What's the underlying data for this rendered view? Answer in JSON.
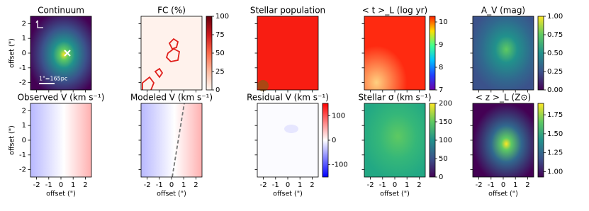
{
  "chart_data": [
    {
      "type": "image",
      "title": "Continuum",
      "ylabel": "offset (\")",
      "annotation": "1\"=165pc",
      "xlim": [
        -2.5,
        2.5
      ],
      "ylim": [
        -2.5,
        2.5
      ],
      "xticks": [
        -2,
        -1,
        0,
        1,
        2
      ],
      "yticks": [
        -2,
        -1,
        0,
        1,
        2
      ],
      "xticklabels": false,
      "yticklabels": true
    },
    {
      "type": "image",
      "title": "FC (%)",
      "xlim": [
        -2.5,
        2.5
      ],
      "ylim": [
        -2.5,
        2.5
      ],
      "xticks": [
        -2,
        -1,
        0,
        1,
        2
      ],
      "yticks": [
        -2,
        -1,
        0,
        1,
        2
      ],
      "xticklabels": false,
      "yticklabels": false,
      "clim": [
        0,
        100
      ],
      "cticks": [
        0,
        25,
        50,
        75,
        100
      ],
      "cmap": "Reds"
    },
    {
      "type": "image",
      "title": "Stellar population",
      "xlim": [
        -2.5,
        2.5
      ],
      "ylim": [
        -2.5,
        2.5
      ],
      "xticks": [
        -2,
        -1,
        0,
        1,
        2
      ],
      "yticks": [
        -2,
        -1,
        0,
        1,
        2
      ],
      "xticklabels": false,
      "yticklabels": false
    },
    {
      "type": "image",
      "title": "< t >_L (log yr)",
      "xlim": [
        -2.5,
        2.5
      ],
      "ylim": [
        -2.5,
        2.5
      ],
      "xticks": [
        -2,
        -1,
        0,
        1,
        2
      ],
      "yticks": [
        -2,
        -1,
        0,
        1,
        2
      ],
      "xticklabels": false,
      "yticklabels": false,
      "clim": [
        7,
        10.25
      ],
      "cticks": [
        7,
        8,
        9,
        10
      ],
      "cmap": "rainbow"
    },
    {
      "type": "image",
      "title": "A_V (mag)",
      "xlim": [
        -2.5,
        2.5
      ],
      "ylim": [
        -2.5,
        2.5
      ],
      "xticks": [
        -2,
        -1,
        0,
        1,
        2
      ],
      "yticks": [
        -2,
        -1,
        0,
        1,
        2
      ],
      "xticklabels": false,
      "yticklabels": false,
      "clim": [
        0,
        1
      ],
      "cticks": [
        {
          "value": 0,
          "label": "0.00"
        },
        {
          "value": 0.25,
          "label": "0.25"
        },
        {
          "value": 0.5,
          "label": "0.50"
        },
        {
          "value": 0.75,
          "label": "0.75"
        },
        {
          "value": 1,
          "label": "1.00"
        }
      ],
      "cmap": "viridis"
    },
    {
      "type": "image",
      "title": "Observed V (km s⁻¹)",
      "xlabel": "offset (\")",
      "ylabel": "offset (\")",
      "xlim": [
        -2.5,
        2.5
      ],
      "ylim": [
        -2.5,
        2.5
      ],
      "xticks": [
        -2,
        -1,
        0,
        1,
        2
      ],
      "yticks": [
        -2,
        -1,
        0,
        1,
        2
      ],
      "xticklabels": true,
      "yticklabels": true
    },
    {
      "type": "image",
      "title": "Modeled V (km s⁻¹)",
      "xlabel": "offset (\")",
      "xlim": [
        -2.5,
        2.5
      ],
      "ylim": [
        -2.5,
        2.5
      ],
      "xticks": [
        -2,
        -1,
        0,
        1,
        2
      ],
      "yticks": [
        -2,
        -1,
        0,
        1,
        2
      ],
      "xticklabels": true,
      "yticklabels": false
    },
    {
      "type": "image",
      "title": "Residual V (km s⁻¹)",
      "xlabel": "offset (\")",
      "xlim": [
        -2.5,
        2.5
      ],
      "ylim": [
        -2.5,
        2.5
      ],
      "xticks": [
        -2,
        -1,
        0,
        1,
        2
      ],
      "yticks": [
        -2,
        -1,
        0,
        1,
        2
      ],
      "xticklabels": true,
      "yticklabels": false,
      "clim": [
        -150,
        150
      ],
      "cticks": [
        -100,
        0,
        100
      ],
      "cmap": "bwr"
    },
    {
      "type": "image",
      "title": "Stellar σ (km s⁻¹)",
      "xlabel": "offset (\")",
      "xlim": [
        -2.5,
        2.5
      ],
      "ylim": [
        -2.5,
        2.5
      ],
      "xticks": [
        -2,
        -1,
        0,
        1,
        2
      ],
      "yticks": [
        -2,
        -1,
        0,
        1,
        2
      ],
      "xticklabels": true,
      "yticklabels": false,
      "clim": [
        0,
        200
      ],
      "cticks": [
        0,
        50,
        100,
        150,
        200
      ],
      "cmap": "viridis"
    },
    {
      "type": "image",
      "title": "< z >_L (Z⊙)",
      "xlabel": "offset (\")",
      "xlim": [
        -2.5,
        2.5
      ],
      "ylim": [
        -2.5,
        2.5
      ],
      "xticks": [
        -2,
        -1,
        0,
        1,
        2
      ],
      "yticks": [
        -2,
        -1,
        0,
        1,
        2
      ],
      "xticklabels": true,
      "yticklabels": false,
      "clim": [
        0.93,
        1.9
      ],
      "cticks": [
        {
          "value": 1,
          "label": "1.00"
        },
        {
          "value": 1.25,
          "label": "1.25"
        },
        {
          "value": 1.5,
          "label": "1.50"
        },
        {
          "value": 1.75,
          "label": "1.75"
        }
      ],
      "cmap": "viridis"
    }
  ]
}
